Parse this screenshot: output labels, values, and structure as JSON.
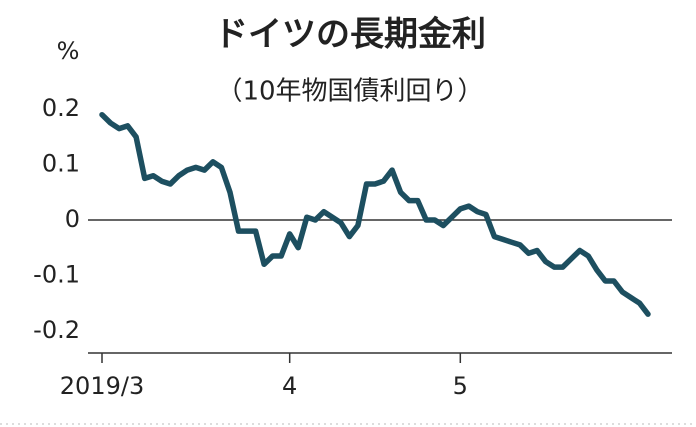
{
  "chart_data": {
    "type": "line",
    "title": "ドイツの長期金利",
    "subtitle": "（10年物国債利回り）",
    "y_unit": "%",
    "categories": [
      "2019/3",
      null,
      null,
      null,
      null,
      null,
      null,
      null,
      null,
      null,
      null,
      null,
      null,
      null,
      null,
      null,
      null,
      null,
      null,
      null,
      null,
      null,
      "4",
      null,
      null,
      null,
      null,
      null,
      null,
      null,
      null,
      null,
      null,
      null,
      null,
      null,
      null,
      null,
      null,
      null,
      null,
      null,
      "5",
      null,
      null,
      null,
      null,
      null,
      null,
      null,
      null,
      null,
      null,
      null,
      null,
      null,
      null,
      null,
      null,
      null,
      null,
      null,
      null,
      null,
      null
    ],
    "series": [
      {
        "color": "#1d4f60",
        "values": [
          0.19,
          0.175,
          0.165,
          0.17,
          0.15,
          0.075,
          0.08,
          0.07,
          0.065,
          0.08,
          0.09,
          0.095,
          0.09,
          0.105,
          0.095,
          0.05,
          -0.02,
          -0.02,
          -0.02,
          -0.08,
          -0.065,
          -0.065,
          -0.025,
          -0.05,
          0.005,
          0,
          0.015,
          0.005,
          -0.005,
          -0.03,
          -0.01,
          0.065,
          0.065,
          0.07,
          0.09,
          0.05,
          0.035,
          0.035,
          0,
          0,
          -0.01,
          0.005,
          0.02,
          0.025,
          0.015,
          0.01,
          -0.03,
          -0.035,
          -0.04,
          -0.045,
          -0.06,
          -0.055,
          -0.075,
          -0.085,
          -0.085,
          -0.07,
          -0.055,
          -0.065,
          -0.09,
          -0.11,
          -0.11,
          -0.13,
          -0.14,
          -0.15,
          -0.17
        ]
      }
    ],
    "ylim": [
      -0.24,
      0.24
    ],
    "yticks": [
      0.2,
      0.1,
      0,
      -0.1,
      -0.2
    ]
  }
}
